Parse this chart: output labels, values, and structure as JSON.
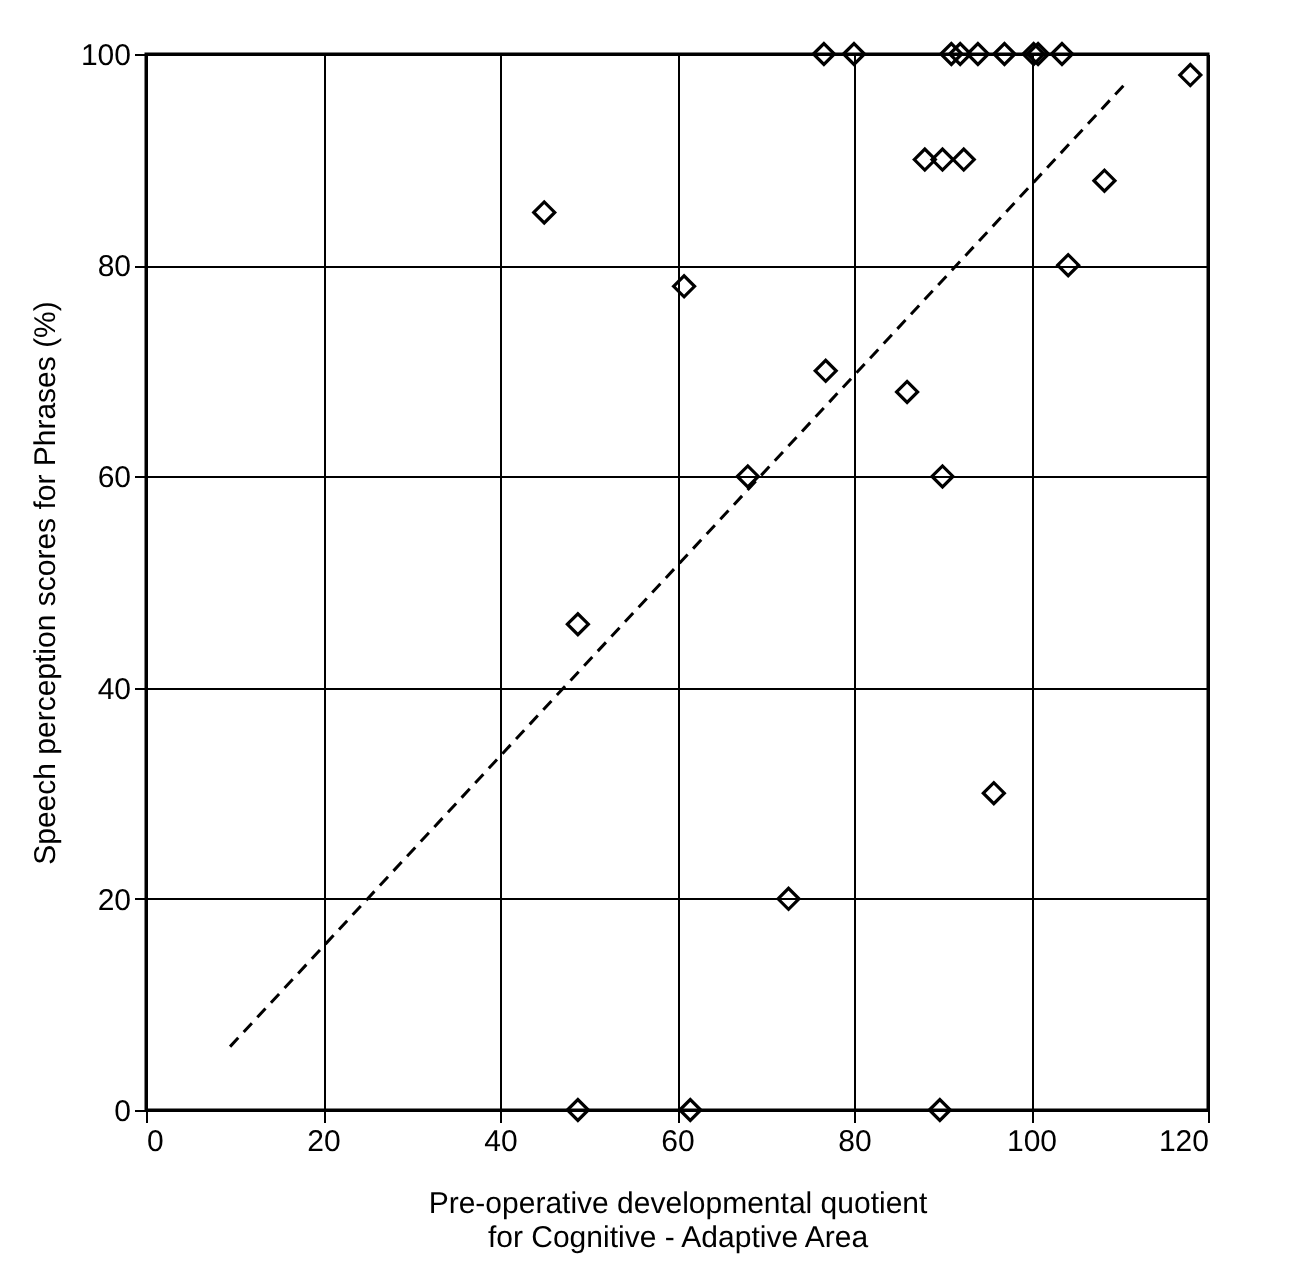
{
  "chart_data": {
    "type": "scatter",
    "xlabel": "Pre-operative developmental quotient\nfor Cognitive - Adaptive Area",
    "ylabel": "Speech perception scores for Phrases (%)",
    "xlim": [
      0,
      120
    ],
    "ylim": [
      0,
      100
    ],
    "xticks": [
      0,
      20,
      40,
      60,
      80,
      100,
      120
    ],
    "yticks": [
      0,
      20,
      40,
      60,
      80,
      100
    ],
    "grid": true,
    "series": [
      {
        "color": "#000000",
        "marker": "diamond",
        "x": [
          76.6,
          80,
          91,
          92,
          94,
          97,
          100.3,
          100.8,
          103.5,
          88,
          90,
          92.4,
          45,
          118,
          108.3,
          104.2,
          60.8,
          76.8,
          86,
          48.8,
          68,
          90,
          95.8,
          72.6,
          48.8,
          61.5,
          89.7
        ],
        "values": [
          100,
          100,
          100,
          100,
          100,
          100,
          100,
          100,
          100,
          90,
          90,
          90,
          85,
          98,
          88,
          80,
          78,
          70,
          68,
          46,
          60,
          60,
          30,
          20,
          0,
          0,
          0
        ]
      },
      {
        "type": "line",
        "color": "#000000",
        "line_style": "dashed",
        "x": [
          9.5,
          111
        ],
        "values": [
          6,
          97.5
        ]
      }
    ]
  }
}
